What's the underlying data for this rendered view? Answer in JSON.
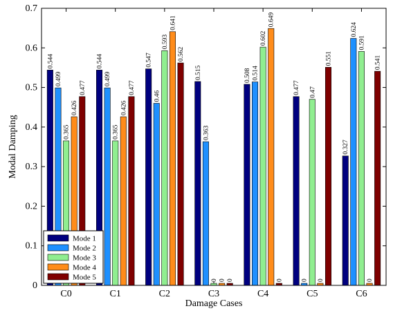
{
  "chart_data": {
    "type": "bar",
    "title": "",
    "xlabel": "Damage Cases",
    "ylabel": "Modal Damping",
    "categories": [
      "C0",
      "C1",
      "C2",
      "C3",
      "C4",
      "C5",
      "C6"
    ],
    "ylim": [
      0,
      0.7
    ],
    "yticks": [
      0,
      0.1,
      0.2,
      0.3,
      0.4,
      0.5,
      0.6,
      0.7
    ],
    "ytick_labels": [
      "0",
      "0.1",
      "0.2",
      "0.3",
      "0.4",
      "0.5",
      "0.6",
      "0.7"
    ],
    "grid": false,
    "legend_position": "bottom-left",
    "series": [
      {
        "name": "Mode 1",
        "color": "#00007f",
        "values": [
          0.544,
          0.544,
          0.547,
          0.515,
          0.508,
          0.477,
          0.327
        ],
        "labels": [
          "0.544",
          "0.544",
          "0.547",
          "0.515",
          "0.508",
          "0.477",
          "0.327"
        ]
      },
      {
        "name": "Mode 2",
        "color": "#1e90ff",
        "values": [
          0.499,
          0.499,
          0.46,
          0.363,
          0.514,
          0,
          0.624
        ],
        "labels": [
          "0.499",
          "0.499",
          "0.46",
          "0.363",
          "0.514",
          "0",
          "0.624"
        ]
      },
      {
        "name": "Mode 3",
        "color": "#90ee90",
        "values": [
          0.365,
          0.365,
          0.593,
          0,
          0.602,
          0.47,
          0.591
        ],
        "labels": [
          "0.365",
          "0.365",
          "0.593",
          "0",
          "0.602",
          "0.47",
          "0.591"
        ]
      },
      {
        "name": "Mode 4",
        "color": "#ff8c1a",
        "values": [
          0.426,
          0.426,
          0.641,
          0,
          0.649,
          0,
          0
        ],
        "labels": [
          "0.426",
          "0.426",
          "0.641",
          "0",
          "0.649",
          "0",
          "0"
        ]
      },
      {
        "name": "Mode 5",
        "color": "#7f0000",
        "values": [
          0.477,
          0.477,
          0.562,
          0,
          0,
          0.551,
          0.541
        ],
        "labels": [
          "0.477",
          "0.477",
          "0.562",
          "0",
          "0",
          "0.551",
          "0.541"
        ]
      }
    ]
  }
}
